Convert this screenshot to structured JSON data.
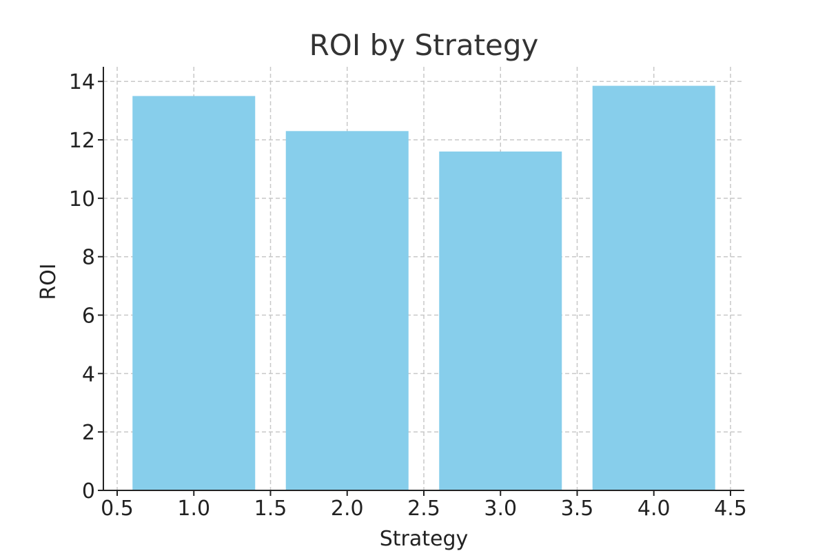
{
  "chart_data": {
    "type": "bar",
    "title": "ROI by Strategy",
    "xlabel": "Strategy",
    "ylabel": "ROI",
    "x": [
      1,
      2,
      3,
      4
    ],
    "values": [
      13.5,
      12.3,
      11.6,
      13.85
    ],
    "bar_width": 0.8,
    "xlim": [
      0.41,
      4.59
    ],
    "ylim": [
      0,
      14.5
    ],
    "xticks": [
      0.5,
      1.0,
      1.5,
      2.0,
      2.5,
      3.0,
      3.5,
      4.0,
      4.5
    ],
    "xtick_labels": [
      "0.5",
      "1.0",
      "1.5",
      "2.0",
      "2.5",
      "3.0",
      "3.5",
      "4.0",
      "4.5"
    ],
    "yticks": [
      0,
      2,
      4,
      6,
      8,
      10,
      12,
      14
    ],
    "ytick_labels": [
      "0",
      "2",
      "4",
      "6",
      "8",
      "10",
      "12",
      "14"
    ],
    "grid": true,
    "bar_color": "#87CEEB",
    "legend": false
  }
}
